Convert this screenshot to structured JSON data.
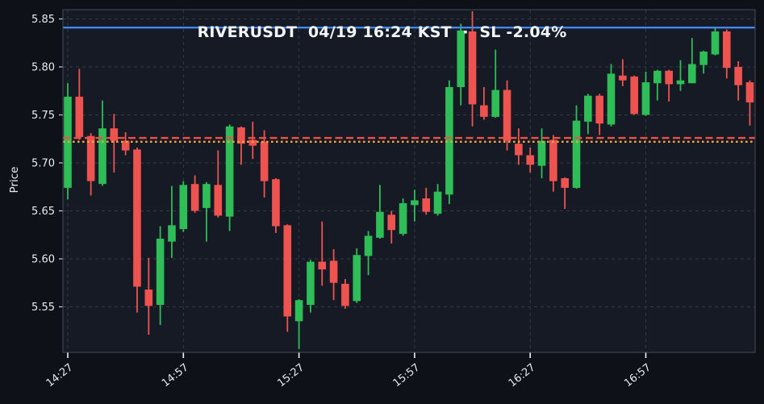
{
  "figure": {
    "title": "RIVERUSDT  04/19 16:24 KST  ·  SL -2.04%",
    "title_parts": {
      "symbol": "RIVERUSDT",
      "timestamp": "04/19 16:24 KST",
      "separator": "·",
      "stop_loss_label": "SL -2.04%"
    }
  },
  "colors": {
    "figure_bg": "#0e1118",
    "plot_bg": "#151a24",
    "grid": "#333a47",
    "spine": "#454c58",
    "tick_text": "#e9ebef",
    "tick_mark": "#c8ccd4",
    "x_tick_mark": "#f0f2f5",
    "candle_up": "#2ebd56",
    "candle_down": "#ef5350",
    "sl_line_blue": "#4189f0",
    "ref_line_red_dashed": "#f1504a",
    "ref_line_orange_dotted": "#f1a63d"
  },
  "chart_data": {
    "type": "candlestick",
    "title": "RIVERUSDT  04/19 16:24 KST  ·  SL -2.04%",
    "xlabel": "",
    "ylabel": "Price",
    "grid": true,
    "legend_position": "none",
    "ylim": [
      5.501,
      5.86
    ],
    "y_tick_values": [
      5.85,
      5.8,
      5.75,
      5.7,
      5.65,
      5.6,
      5.55
    ],
    "y_tick_labels": [
      "5.85",
      "5.80",
      "5.75",
      "5.70",
      "5.65",
      "5.60",
      "5.55"
    ],
    "x_tick_indices": [
      0,
      10,
      20,
      30,
      40,
      50
    ],
    "x_tick_labels": [
      "14:27",
      "14:57",
      "15:27",
      "15:57",
      "16:27",
      "16:57"
    ],
    "ref_lines": [
      {
        "name": "sl-line",
        "value": 5.841,
        "style": "solid",
        "color_key": "sl_line_blue"
      },
      {
        "name": "entry-line-dashed",
        "value": 5.726,
        "style": "dashed",
        "color_key": "ref_line_red_dashed"
      },
      {
        "name": "entry-line-dotted",
        "value": 5.722,
        "style": "dotted",
        "color_key": "ref_line_orange_dotted"
      }
    ],
    "times": [
      "14:27",
      "14:30",
      "14:33",
      "14:36",
      "14:39",
      "14:42",
      "14:45",
      "14:48",
      "14:51",
      "14:54",
      "14:57",
      "15:00",
      "15:03",
      "15:06",
      "15:09",
      "15:12",
      "15:15",
      "15:18",
      "15:21",
      "15:24",
      "15:27",
      "15:30",
      "15:33",
      "15:36",
      "15:39",
      "15:42",
      "15:45",
      "15:48",
      "15:51",
      "15:54",
      "15:57",
      "16:00",
      "16:03",
      "16:06",
      "16:09",
      "16:12",
      "16:15",
      "16:18",
      "16:21",
      "16:24",
      "16:27",
      "16:30",
      "16:33",
      "16:36",
      "16:39",
      "16:42",
      "16:45",
      "16:48",
      "16:51",
      "16:54",
      "16:57",
      "17:00",
      "17:03",
      "17:06",
      "17:09",
      "17:12",
      "17:15",
      "17:18",
      "17:21",
      "17:24"
    ],
    "ohlc": [
      [
        5.674,
        5.783,
        5.662,
        5.769
      ],
      [
        5.769,
        5.798,
        5.724,
        5.727
      ],
      [
        5.728,
        5.731,
        5.666,
        5.681
      ],
      [
        5.678,
        5.765,
        5.676,
        5.736
      ],
      [
        5.736,
        5.751,
        5.69,
        5.723
      ],
      [
        5.723,
        5.732,
        5.708,
        5.713
      ],
      [
        5.714,
        5.716,
        5.544,
        5.571
      ],
      [
        5.568,
        5.601,
        5.521,
        5.551
      ],
      [
        5.552,
        5.634,
        5.531,
        5.621
      ],
      [
        5.618,
        5.676,
        5.601,
        5.635
      ],
      [
        5.631,
        5.681,
        5.628,
        5.677
      ],
      [
        5.678,
        5.687,
        5.648,
        5.65
      ],
      [
        5.653,
        5.68,
        5.618,
        5.678
      ],
      [
        5.677,
        5.713,
        5.643,
        5.645
      ],
      [
        5.644,
        5.74,
        5.629,
        5.738
      ],
      [
        5.737,
        5.738,
        5.698,
        5.72
      ],
      [
        5.724,
        5.743,
        5.704,
        5.718
      ],
      [
        5.722,
        5.734,
        5.664,
        5.681
      ],
      [
        5.683,
        5.684,
        5.627,
        5.634
      ],
      [
        5.635,
        5.636,
        5.524,
        5.54
      ],
      [
        5.535,
        5.558,
        5.506,
        5.557
      ],
      [
        5.552,
        5.599,
        5.544,
        5.597
      ],
      [
        5.597,
        5.639,
        5.572,
        5.589
      ],
      [
        5.598,
        5.61,
        5.557,
        5.575
      ],
      [
        5.574,
        5.579,
        5.548,
        5.551
      ],
      [
        5.556,
        5.611,
        5.554,
        5.604
      ],
      [
        5.603,
        5.629,
        5.583,
        5.624
      ],
      [
        5.622,
        5.677,
        5.621,
        5.649
      ],
      [
        5.646,
        5.65,
        5.616,
        5.63
      ],
      [
        5.626,
        5.663,
        5.624,
        5.658
      ],
      [
        5.656,
        5.672,
        5.639,
        5.661
      ],
      [
        5.663,
        5.674,
        5.646,
        5.649
      ],
      [
        5.647,
        5.678,
        5.645,
        5.67
      ],
      [
        5.667,
        5.786,
        5.657,
        5.779
      ],
      [
        5.779,
        5.845,
        5.76,
        5.838
      ],
      [
        5.837,
        5.858,
        5.738,
        5.761
      ],
      [
        5.76,
        5.779,
        5.745,
        5.748
      ],
      [
        5.748,
        5.818,
        5.747,
        5.776
      ],
      [
        5.776,
        5.786,
        5.713,
        5.723
      ],
      [
        5.72,
        5.736,
        5.698,
        5.708
      ],
      [
        5.708,
        5.716,
        5.69,
        5.698
      ],
      [
        5.697,
        5.736,
        5.684,
        5.723
      ],
      [
        5.724,
        5.729,
        5.67,
        5.681
      ],
      [
        5.684,
        5.685,
        5.652,
        5.674
      ],
      [
        5.674,
        5.76,
        5.673,
        5.744
      ],
      [
        5.743,
        5.772,
        5.73,
        5.77
      ],
      [
        5.77,
        5.772,
        5.729,
        5.741
      ],
      [
        5.74,
        5.803,
        5.738,
        5.793
      ],
      [
        5.791,
        5.808,
        5.78,
        5.786
      ],
      [
        5.79,
        5.791,
        5.75,
        5.751
      ],
      [
        5.75,
        5.795,
        5.749,
        5.784
      ],
      [
        5.783,
        5.797,
        5.765,
        5.796
      ],
      [
        5.796,
        5.797,
        5.764,
        5.782
      ],
      [
        5.782,
        5.807,
        5.775,
        5.786
      ],
      [
        5.783,
        5.83,
        5.783,
        5.803
      ],
      [
        5.802,
        5.817,
        5.793,
        5.816
      ],
      [
        5.813,
        5.841,
        5.812,
        5.837
      ],
      [
        5.837,
        5.839,
        5.788,
        5.799
      ],
      [
        5.8,
        5.806,
        5.765,
        5.781
      ],
      [
        5.784,
        5.786,
        5.739,
        5.763
      ]
    ]
  }
}
